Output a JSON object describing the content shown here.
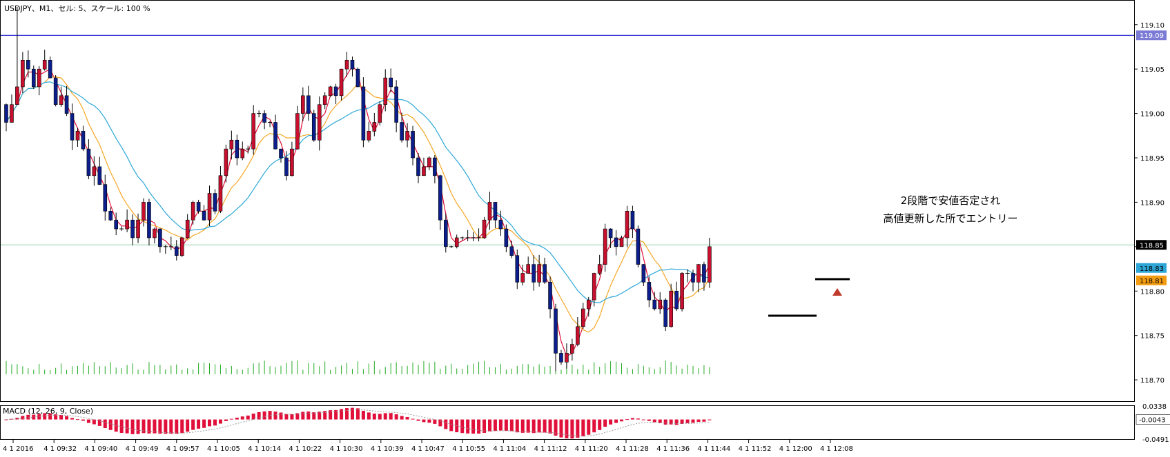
{
  "window": {
    "header": "USDJPY、M1、セル: 5、スケール: 100 %"
  },
  "chart_data": [
    {
      "type": "candlestick",
      "symbol": "USDJPY",
      "timeframe": "M1",
      "ylim": [
        118.676,
        119.127
      ],
      "y_ticks": [
        "119.10",
        "119.05",
        "119.00",
        "118.95",
        "118.90",
        "118.85",
        "118.80",
        "118.75",
        "118.70"
      ],
      "x_tick_labels": [
        "4 1 2016",
        "4 1 09:32",
        "4 1 09:40",
        "4 1 09:49",
        "4 1 09:57",
        "4 1 10:05",
        "4 1 10:14",
        "4 1 10:22",
        "4 1 10:30",
        "4 1 10:39",
        "4 1 10:47",
        "4 1 10:55",
        "4 1 11:04",
        "4 1 11:12",
        "4 1 11:20",
        "4 1 11:28",
        "4 1 11:36",
        "4 1 11:44",
        "4 1 11:52",
        "4 1 12:00",
        "4 1 12:08"
      ],
      "closes": [
        118.99,
        119.01,
        119.03,
        119.06,
        119.05,
        119.03,
        119.05,
        119.06,
        119.04,
        119.01,
        119.02,
        119.0,
        118.97,
        118.98,
        118.96,
        118.93,
        118.94,
        118.92,
        118.89,
        118.88,
        118.87,
        118.87,
        118.88,
        118.86,
        118.88,
        118.9,
        118.86,
        118.87,
        118.85,
        118.85,
        118.85,
        118.84,
        118.86,
        118.88,
        118.9,
        118.89,
        118.88,
        118.91,
        118.89,
        118.93,
        118.96,
        118.97,
        118.95,
        118.96,
        118.96,
        119.0,
        119.0,
        118.99,
        118.99,
        118.96,
        118.95,
        118.93,
        118.96,
        119.0,
        119.02,
        119.0,
        118.97,
        119.01,
        119.02,
        119.03,
        119.02,
        119.05,
        119.06,
        119.05,
        119.03,
        118.97,
        118.98,
        118.99,
        119.01,
        119.04,
        119.03,
        118.99,
        118.97,
        118.98,
        118.95,
        118.93,
        118.94,
        118.95,
        118.93,
        118.88,
        118.85,
        118.85,
        118.86,
        118.86,
        118.86,
        118.86,
        118.86,
        118.88,
        118.9,
        118.88,
        118.87,
        118.85,
        118.84,
        118.81,
        118.82,
        118.83,
        118.81,
        118.83,
        118.81,
        118.78,
        118.73,
        118.72,
        118.73,
        118.74,
        118.76,
        118.78,
        118.79,
        118.82,
        118.83,
        118.87,
        118.86,
        118.85,
        118.86,
        118.89,
        118.87,
        118.83,
        118.81,
        118.79,
        118.78,
        118.79,
        118.76,
        118.8,
        118.78,
        118.82,
        118.82,
        118.81,
        118.83,
        118.81,
        118.85
      ],
      "volume_max_tick": "118.70",
      "hlines": [
        {
          "label": "119.09",
          "value": 119.088,
          "color": "#0000cc",
          "label_bg": "#7b7bd6"
        },
        {
          "label": "118.85",
          "value": 118.852,
          "color": "#8fcfa8",
          "label_bg": "#000000"
        }
      ],
      "price_labels": [
        {
          "label": "118.83",
          "value": 118.826,
          "bg": "#2da6d6"
        },
        {
          "label": "118.81",
          "value": 118.812,
          "bg": "#f39c12"
        }
      ],
      "annotation": {
        "line1": "2段階で安値否定され",
        "line2": "高値更新した所でエントリー"
      },
      "colors": {
        "bull": "#c8102e",
        "bear": "#0b1e8c",
        "ma_fast": "#e0103a",
        "ma_mid": "#f5a623",
        "ma_slow": "#2aa7d8",
        "volume": "#22aa22",
        "arrow": "#c0392b"
      }
    },
    {
      "type": "bar",
      "indicator": "MACD",
      "title": "MACD (12, 26, 9, Close)",
      "ylim": [
        -0.0491,
        0.0338
      ],
      "y_ticks": [
        "0.0338",
        "-0.0043",
        "-0.0491"
      ],
      "current_label": "-0.0043",
      "color": "#e0103a"
    }
  ]
}
